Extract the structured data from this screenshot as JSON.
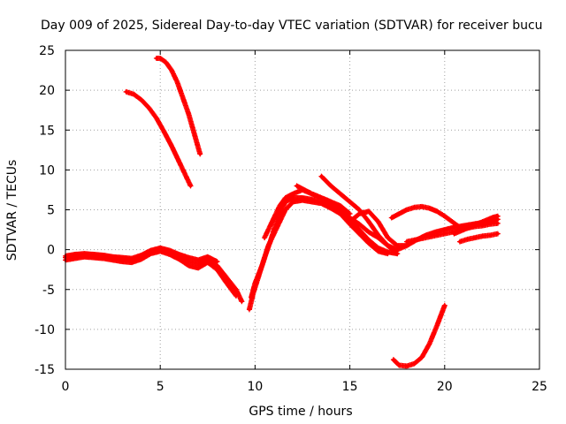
{
  "chart_data": {
    "type": "scatter",
    "title": "Day 009 of 2025, Sidereal Day-to-day VTEC variation (SDTVAR) for receiver bucu",
    "xlabel": "GPS time / hours",
    "ylabel": "SDTVAR / TECUs",
    "xlim": [
      0,
      25
    ],
    "ylim": [
      -15,
      25
    ],
    "x_ticks": [
      0,
      5,
      10,
      15,
      20,
      25
    ],
    "y_ticks": [
      -15,
      -10,
      -5,
      0,
      5,
      10,
      15,
      20,
      25
    ],
    "x_tick_labels": [
      "0",
      "5",
      "10",
      "15",
      "20",
      "25"
    ],
    "y_tick_labels": [
      "-15",
      "-10",
      "-5",
      "0",
      "5",
      "10",
      "15",
      "20",
      "25"
    ],
    "grid": true,
    "marker_color": "#ff0000",
    "series": [
      {
        "name": "arc-main-1",
        "x": [
          0,
          0.5,
          1.0,
          1.5,
          2.0,
          2.5,
          3.0,
          3.5,
          4.0,
          4.5,
          5.0,
          5.5,
          6.0,
          6.5,
          7.0,
          7.5,
          8.0,
          8.5,
          9.0,
          9.3
        ],
        "y": [
          -1.0,
          -0.8,
          -0.7,
          -0.8,
          -0.9,
          -1.0,
          -1.2,
          -1.3,
          -0.9,
          -0.3,
          0.0,
          -0.3,
          -0.9,
          -1.5,
          -1.8,
          -1.2,
          -2.0,
          -3.5,
          -5.0,
          -6.5
        ]
      },
      {
        "name": "arc-main-2",
        "x": [
          0,
          0.5,
          1.0,
          1.5,
          2.0,
          2.5,
          3.0,
          3.5,
          4.0,
          4.5,
          5.0,
          5.5,
          6.0,
          6.5,
          7.0,
          7.5,
          8.0,
          8.5,
          9.0
        ],
        "y": [
          -1.3,
          -1.1,
          -0.9,
          -1.0,
          -1.1,
          -1.3,
          -1.5,
          -1.6,
          -1.2,
          -0.5,
          -0.2,
          -0.6,
          -1.2,
          -2.0,
          -2.3,
          -1.6,
          -2.5,
          -4.2,
          -5.8
        ]
      },
      {
        "name": "arc-main-3",
        "x": [
          0,
          0.5,
          1.0,
          1.5,
          2.0,
          2.5,
          3.0,
          3.5,
          4.0,
          4.5,
          5.0,
          5.5,
          6.0,
          6.5,
          7.0,
          7.5,
          8.0
        ],
        "y": [
          -0.8,
          -0.6,
          -0.5,
          -0.6,
          -0.7,
          -0.9,
          -1.0,
          -1.1,
          -0.7,
          -0.1,
          0.2,
          -0.1,
          -0.6,
          -1.0,
          -1.3,
          -0.9,
          -1.5
        ]
      },
      {
        "name": "arc-main-4",
        "x": [
          9.7,
          9.9,
          10.1,
          10.3,
          10.5,
          10.8,
          11.0,
          11.3,
          11.6,
          12.0,
          12.5,
          13.0,
          13.5,
          14.0,
          14.5,
          15.0,
          15.5,
          16.0,
          16.5,
          17.0,
          17.5
        ],
        "y": [
          -7.5,
          -5.5,
          -4.0,
          -2.5,
          -1.0,
          1.0,
          2.5,
          4.5,
          6.0,
          6.5,
          6.5,
          6.3,
          6.0,
          5.5,
          4.8,
          3.8,
          2.5,
          1.2,
          0.2,
          -0.3,
          -0.5
        ]
      },
      {
        "name": "arc-main-5",
        "x": [
          9.8,
          10.0,
          10.2,
          10.4,
          10.7,
          11.0,
          11.3,
          11.6,
          12.0,
          12.5,
          13.0,
          13.5,
          14.0,
          14.5,
          15.0,
          15.5,
          16.0,
          16.5,
          17.0
        ],
        "y": [
          -6.0,
          -4.2,
          -3.0,
          -1.8,
          0.5,
          2.0,
          3.5,
          5.0,
          6.0,
          6.2,
          6.0,
          5.8,
          5.2,
          4.5,
          3.2,
          2.0,
          0.8,
          -0.2,
          -0.5
        ]
      },
      {
        "name": "arc-main-6",
        "x": [
          10.5,
          10.8,
          11.0,
          11.3,
          11.6,
          12.0,
          12.5,
          13.0,
          13.5,
          14.0,
          14.5,
          15.0
        ],
        "y": [
          1.5,
          3.0,
          4.0,
          5.5,
          6.5,
          7.0,
          7.5,
          7.0,
          6.5,
          6.0,
          5.5,
          4.5
        ]
      },
      {
        "name": "arc-main-7",
        "x": [
          12.2,
          12.6,
          13.0,
          13.5,
          14.0,
          14.5,
          15.0,
          15.5,
          16.0,
          16.5,
          17.0,
          17.5,
          18.0
        ],
        "y": [
          8.0,
          7.5,
          7.0,
          6.5,
          6.0,
          5.0,
          4.0,
          3.2,
          2.2,
          1.5,
          0.5,
          0.0,
          0.5
        ]
      },
      {
        "name": "arc-main-8",
        "x": [
          13.5,
          14.0,
          14.5,
          15.0,
          15.5,
          16.0,
          16.5,
          17.0,
          17.5
        ],
        "y": [
          9.2,
          8.0,
          7.0,
          6.0,
          5.0,
          3.5,
          1.8,
          0.5,
          -0.5
        ]
      },
      {
        "name": "arc-main-9",
        "x": [
          15.0,
          15.5,
          16.0,
          16.5,
          17.0,
          17.5,
          18.0,
          18.5,
          19.0,
          19.5,
          20.0,
          20.5,
          21.0,
          21.5,
          22.0,
          22.5,
          22.8
        ],
        "y": [
          3.5,
          4.5,
          4.8,
          3.5,
          1.5,
          0.5,
          0.5,
          1.2,
          1.8,
          2.2,
          2.5,
          2.8,
          3.0,
          3.2,
          3.4,
          3.6,
          3.8
        ]
      },
      {
        "name": "arc-main-10",
        "x": [
          17.2,
          17.6,
          18.0,
          18.4,
          18.8,
          19.2,
          19.6,
          20.0,
          20.4,
          20.8
        ],
        "y": [
          4.0,
          4.5,
          5.0,
          5.3,
          5.4,
          5.2,
          4.8,
          4.2,
          3.5,
          2.8
        ]
      },
      {
        "name": "arc-main-11",
        "x": [
          18.0,
          18.4,
          18.8,
          19.2,
          19.6,
          20.0,
          20.4,
          20.8,
          21.2,
          21.6,
          22.0,
          22.4,
          22.8
        ],
        "y": [
          1.0,
          1.2,
          1.4,
          1.6,
          1.8,
          2.0,
          2.2,
          2.5,
          2.7,
          2.9,
          3.0,
          3.2,
          3.3
        ]
      },
      {
        "name": "arc-main-12",
        "x": [
          20.8,
          21.2,
          21.6,
          22.0,
          22.4,
          22.8
        ],
        "y": [
          1.0,
          1.3,
          1.5,
          1.7,
          1.8,
          2.0
        ]
      },
      {
        "name": "arc-main-13",
        "x": [
          20.5,
          21.0,
          21.5,
          22.0,
          22.5,
          22.8
        ],
        "y": [
          2.0,
          2.5,
          3.0,
          3.5,
          4.0,
          4.2
        ]
      },
      {
        "name": "arc-upper-1",
        "x": [
          4.8,
          5.0,
          5.3,
          5.6,
          5.9,
          6.2,
          6.5,
          6.8,
          7.1
        ],
        "y": [
          24.0,
          24.0,
          23.5,
          22.5,
          21.0,
          19.0,
          17.0,
          14.5,
          12.0
        ]
      },
      {
        "name": "arc-upper-2",
        "x": [
          3.2,
          3.6,
          4.0,
          4.4,
          4.8,
          5.2,
          5.6,
          6.0,
          6.3,
          6.6
        ],
        "y": [
          19.8,
          19.5,
          18.8,
          17.8,
          16.5,
          14.8,
          13.0,
          11.0,
          9.5,
          8.0
        ]
      },
      {
        "name": "arc-lower-1",
        "x": [
          17.3,
          17.6,
          18.0,
          18.4,
          18.8,
          19.2,
          19.6,
          20.0
        ],
        "y": [
          -13.8,
          -14.5,
          -14.6,
          -14.3,
          -13.5,
          -11.8,
          -9.5,
          -7.0
        ]
      }
    ]
  }
}
